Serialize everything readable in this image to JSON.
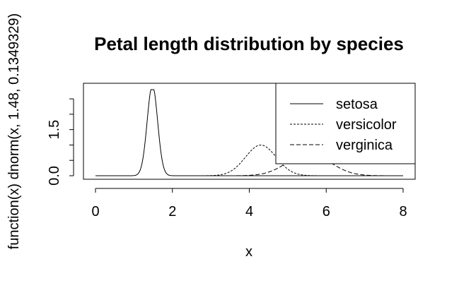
{
  "chart_data": {
    "type": "line",
    "title": "Petal length distribution by species",
    "xlabel": "x",
    "ylabel": "function(x) dnorm(x, 1.48, 0.1349329)",
    "xlim": [
      0,
      8
    ],
    "ylim": [
      0,
      2.8
    ],
    "x_ticks": [
      0,
      2,
      4,
      6,
      8
    ],
    "x_tick_labels": [
      "0",
      "2",
      "4",
      "6",
      "8"
    ],
    "y_ticks": [
      0,
      0.5,
      1,
      1.5,
      2,
      2.5
    ],
    "y_tick_labels": [
      "0.0",
      "",
      "",
      "1.5",
      "",
      ""
    ],
    "grid": false,
    "legend_position": "top-right",
    "series": [
      {
        "name": "setosa",
        "mean": 1.48,
        "sd": 0.1349329,
        "x_range": [
          0,
          8
        ],
        "linestyle": "solid"
      },
      {
        "name": "versicolor",
        "mean": 4.3,
        "sd": 0.4,
        "x_range": [
          2.8,
          6.0
        ],
        "linestyle": "dotted"
      },
      {
        "name": "verginica",
        "mean": 5.55,
        "sd": 0.55,
        "x_range": [
          3.5,
          7.5
        ],
        "linestyle": "dashed"
      }
    ]
  }
}
